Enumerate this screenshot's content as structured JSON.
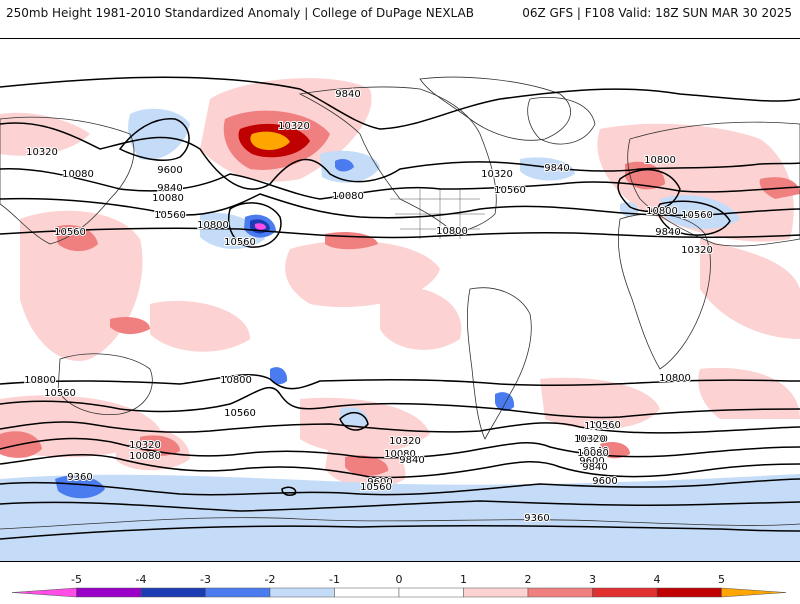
{
  "header": {
    "title_left": "250mb Height 1981-2010 Standardized Anomaly | College of DuPage NEXLAB",
    "title_right": "06Z GFS | F108 Valid: 18Z SUN MAR 30 2025"
  },
  "colors": {
    "neg5": "#ff4de6",
    "neg4": "#9a00c8",
    "neg3": "#1c3cb4",
    "neg2": "#4a7cf0",
    "neg1": "#c4dcf8",
    "zero": "#ffffff",
    "pos1": "#fcd2d2",
    "pos2": "#f08080",
    "pos3": "#e03030",
    "pos4": "#c00000",
    "pos5": "#ffa500"
  },
  "colorbar": {
    "ticks": [
      "-5",
      "-4",
      "-3",
      "-2",
      "-1",
      "0",
      "1",
      "2",
      "3",
      "4",
      "5"
    ]
  },
  "contour_labels": [
    "9840",
    "10320",
    "9600",
    "9840",
    "10080",
    "10560",
    "10800",
    "10560",
    "10320",
    "10080",
    "10320",
    "10560",
    "10080",
    "9840",
    "10800",
    "10560",
    "10320",
    "10800",
    "10800",
    "10560",
    "9840",
    "9360",
    "10800",
    "10560",
    "10320",
    "10080",
    "10800",
    "10560",
    "10320",
    "10080",
    "9840",
    "9600",
    "10560",
    "10320",
    "10080",
    "9840",
    "9600",
    "10800",
    "10560",
    "10320",
    "10080",
    "9840",
    "9600",
    "9360"
  ]
}
